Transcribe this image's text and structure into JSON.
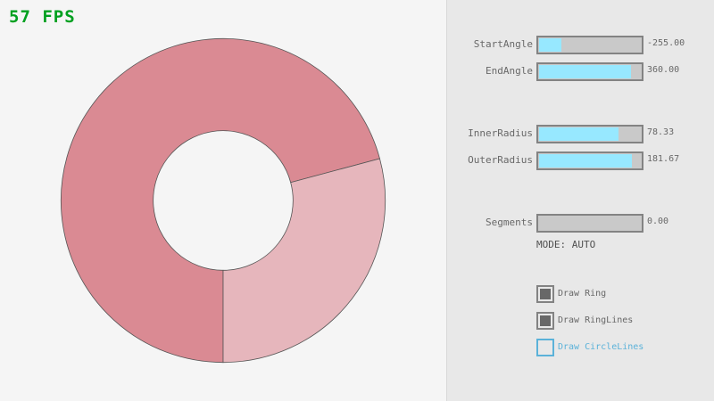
{
  "fps": "57 FPS",
  "ring": {
    "start_angle": -255,
    "end_angle": 360,
    "inner_radius": 78.33,
    "outer_radius": 181.67,
    "colors": {
      "overlap": "#da8a93",
      "single": "#e6b6bc",
      "lines": "#555555"
    }
  },
  "controls": {
    "sliders": [
      {
        "label": "StartAngle",
        "value": "-255.00",
        "fraction": 0.217
      },
      {
        "label": "EndAngle",
        "value": "360.00",
        "fraction": 0.9
      },
      {
        "label": "InnerRadius",
        "value": "78.33",
        "fraction": 0.783
      },
      {
        "label": "OuterRadius",
        "value": "181.67",
        "fraction": 0.908
      },
      {
        "label": "Segments",
        "value": "0.00",
        "fraction": 0
      }
    ],
    "mode": "MODE: AUTO",
    "checkboxes": [
      {
        "label": "Draw Ring",
        "checked": true
      },
      {
        "label": "Draw RingLines",
        "checked": true
      },
      {
        "label": "Draw CircleLines",
        "checked": false
      }
    ]
  }
}
